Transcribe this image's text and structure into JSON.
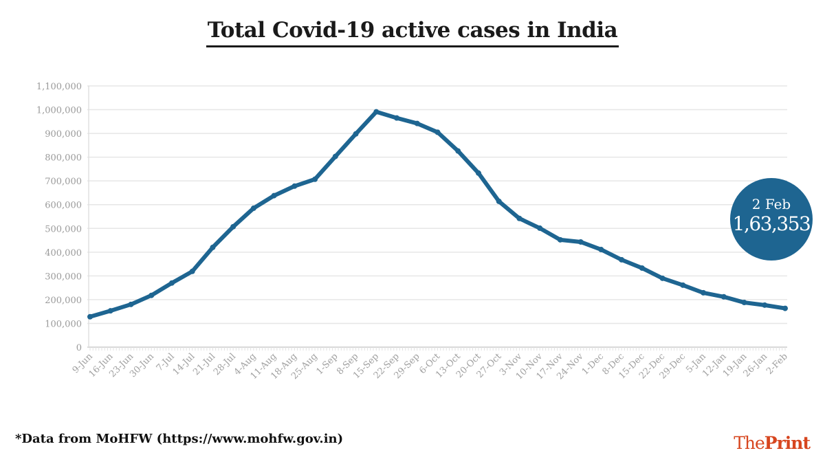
{
  "title": "Total Covid-19 active cases in India",
  "footnote": "*Data from MoHFW (https://www.mohfw.gov.in)",
  "logo": {
    "part1": "The",
    "part2": "Print",
    "color": "#d7461f"
  },
  "callout": {
    "date": "2 Feb",
    "value": "1,63,353",
    "color": "#1e6591"
  },
  "chart_data": {
    "type": "line",
    "title": "Total Covid-19 active cases in India",
    "xlabel": "",
    "ylabel": "",
    "ylim": [
      0,
      1100000
    ],
    "yticks": [
      "0",
      "100,000",
      "200,000",
      "300,000",
      "400,000",
      "500,000",
      "600,000",
      "700,000",
      "800,000",
      "900,000",
      "1,000,000",
      "1,100,000"
    ],
    "grid": true,
    "line_color": "#1e6591",
    "categories": [
      "9-Jun",
      "16-Jun",
      "23-Jun",
      "30-Jun",
      "7-Jul",
      "14-Jul",
      "21-Jul",
      "28-Jul",
      "4-Aug",
      "11-Aug",
      "18-Aug",
      "25-Aug",
      "1-Sep",
      "8-Sep",
      "15-Sep",
      "22-Sep",
      "29-Sep",
      "6-Oct",
      "13-Oct",
      "20-Oct",
      "27-Oct",
      "3-Nov",
      "10-Nov",
      "17-Nov",
      "24-Nov",
      "1-Dec",
      "8-Dec",
      "15-Dec",
      "22-Dec",
      "29-Dec",
      "5-Jan",
      "12-Jan",
      "19-Jan",
      "26-Jan",
      "2-Feb"
    ],
    "values": [
      128000,
      153000,
      180000,
      218000,
      270000,
      319000,
      420000,
      507000,
      585000,
      638000,
      678000,
      707000,
      803000,
      898000,
      991000,
      965000,
      942000,
      905000,
      826000,
      733000,
      614000,
      542000,
      501000,
      452000,
      443000,
      411000,
      368000,
      333000,
      290000,
      261000,
      229000,
      212000,
      188000,
      177000,
      163353
    ]
  }
}
